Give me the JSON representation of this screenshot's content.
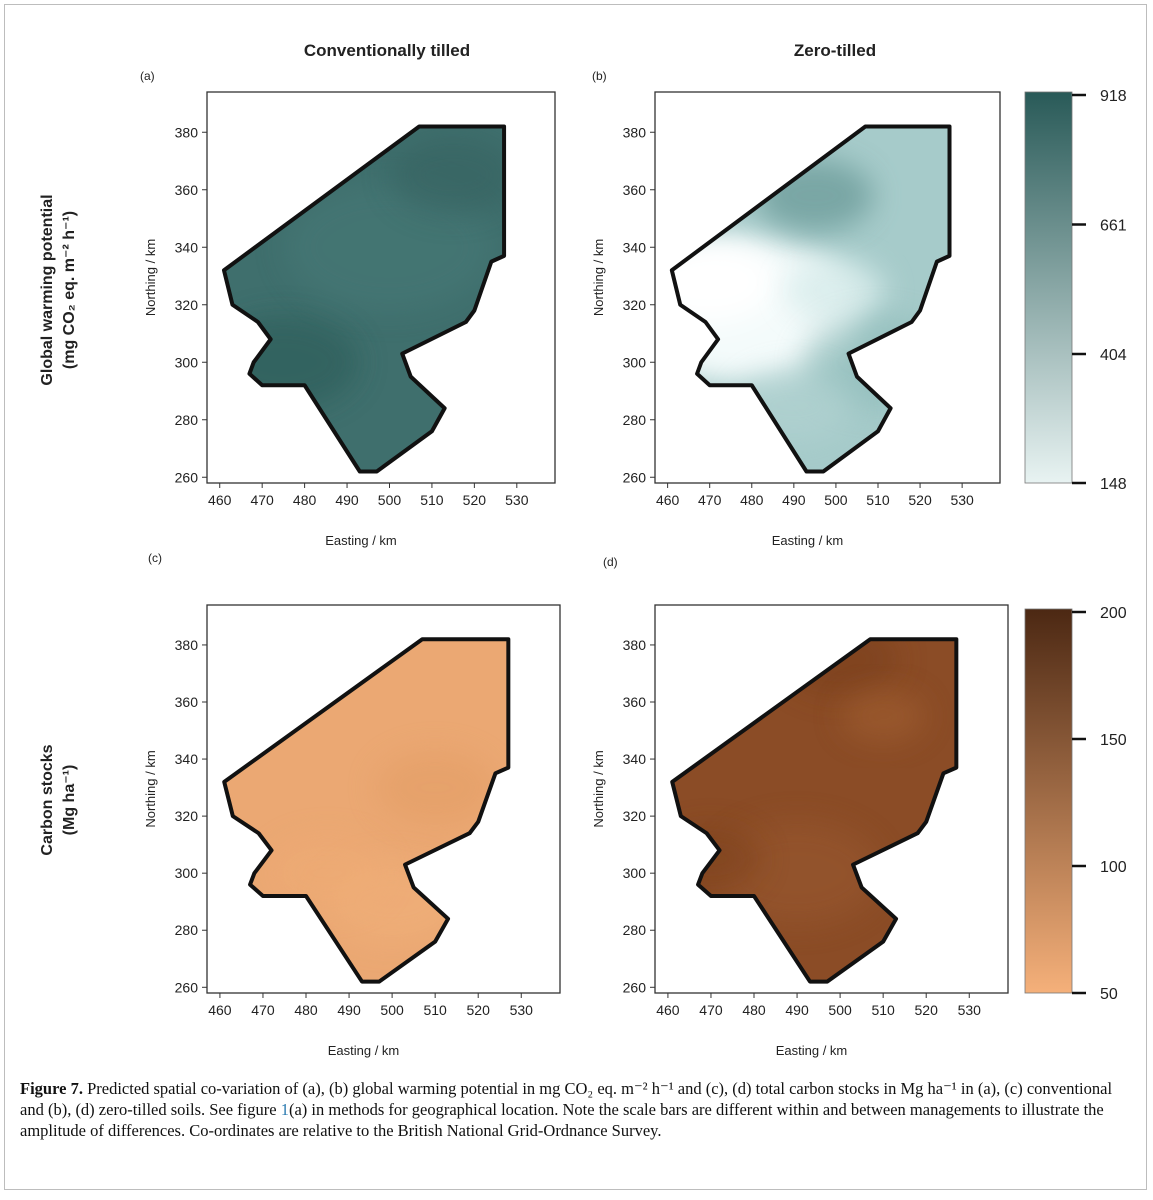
{
  "figure": {
    "column_titles": [
      "Conventionally tilled",
      "Zero-tilled"
    ],
    "row_labels": [
      {
        "line1": "Global warming potential",
        "line2": "(mg CO₂ eq. m⁻² h⁻¹)"
      },
      {
        "line1": "Carbon stocks",
        "line2": "(Mg ha⁻¹)"
      }
    ],
    "panels": [
      {
        "label": "(a)",
        "xlabel": "Easting / km",
        "ylabel": "Northing / km",
        "xlim": [
          457,
          539
        ],
        "ylim": [
          258,
          394
        ],
        "xticks": [
          460,
          470,
          480,
          490,
          500,
          510,
          520,
          530
        ],
        "yticks": [
          260,
          280,
          300,
          320,
          340,
          360,
          380
        ],
        "fill": "#3f6f6d"
      },
      {
        "label": "(b)",
        "xlabel": "Easting / km",
        "ylabel": "Northing / km",
        "xlim": [
          457,
          539
        ],
        "ylim": [
          258,
          394
        ],
        "xticks": [
          460,
          470,
          480,
          490,
          500,
          510,
          520,
          530
        ],
        "yticks": [
          260,
          280,
          300,
          320,
          340,
          360,
          380
        ],
        "fill": "#a6cbca"
      },
      {
        "label": "(c)",
        "xlabel": "Easting / km",
        "ylabel": "Northing / km",
        "xlim": [
          457,
          539
        ],
        "ylim": [
          258,
          394
        ],
        "xticks": [
          460,
          470,
          480,
          490,
          500,
          510,
          520,
          530
        ],
        "yticks": [
          260,
          280,
          300,
          320,
          340,
          360,
          380
        ],
        "fill": "#eba873"
      },
      {
        "label": "(d)",
        "xlabel": "Easting / km",
        "ylabel": "Northing / km",
        "xlim": [
          457,
          539
        ],
        "ylim": [
          258,
          394
        ],
        "xticks": [
          460,
          470,
          480,
          490,
          500,
          510,
          520,
          530
        ],
        "yticks": [
          260,
          280,
          300,
          320,
          340,
          360,
          380
        ],
        "fill": "#8b4c26"
      }
    ],
    "colorbars": [
      {
        "lim": [
          148,
          918
        ],
        "ticks": [
          148,
          404,
          661,
          918
        ],
        "colors": [
          "#e8f3f2",
          "#295a58"
        ]
      },
      {
        "lim": [
          50,
          200
        ],
        "ticks": [
          50,
          100,
          150,
          200
        ],
        "colors": [
          "#f5b07a",
          "#4c2813"
        ]
      }
    ],
    "caption": {
      "label": "Figure 7.",
      "before": " Predicted spatial co-variation of (a), (b) global warming potential in mg CO₂ eq. m⁻² h⁻¹ and (c), (d) total carbon stocks in Mg ha⁻¹ in (a), (c) conventional and (b), (d) zero-tilled soils. See figure ",
      "link": "1",
      "after": "(a) in methods for geographical location. Note the scale bars are different within and between managements to illustrate the amplitude of differences. Co-ordinates are relative to the British National Grid-Ordnance Survey."
    }
  }
}
